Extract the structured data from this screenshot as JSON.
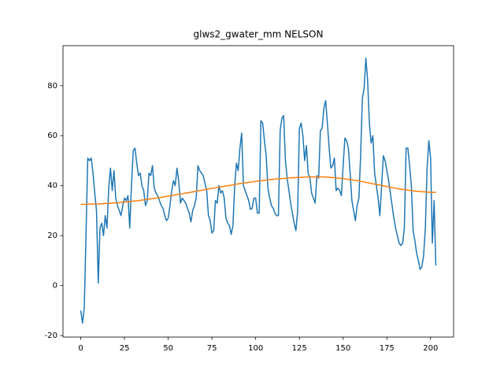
{
  "chart_data": {
    "type": "line",
    "title": "glws2_gwater_mm NELSON",
    "x": [
      0,
      1,
      2,
      3,
      4,
      5,
      6,
      7,
      8,
      9,
      10,
      11,
      12,
      13,
      14,
      15,
      16,
      17,
      18,
      19,
      20,
      21,
      22,
      23,
      24,
      25,
      26,
      27,
      28,
      29,
      30,
      31,
      32,
      33,
      34,
      35,
      36,
      37,
      38,
      39,
      40,
      41,
      42,
      43,
      44,
      45,
      46,
      47,
      48,
      49,
      50,
      51,
      52,
      53,
      54,
      55,
      56,
      57,
      58,
      59,
      60,
      61,
      62,
      63,
      64,
      65,
      66,
      67,
      68,
      69,
      70,
      71,
      72,
      73,
      74,
      75,
      76,
      77,
      78,
      79,
      80,
      81,
      82,
      83,
      84,
      85,
      86,
      87,
      88,
      89,
      90,
      91,
      92,
      93,
      94,
      95,
      96,
      97,
      98,
      99,
      100,
      101,
      102,
      103,
      104,
      105,
      106,
      107,
      108,
      109,
      110,
      111,
      112,
      113,
      114,
      115,
      116,
      117,
      118,
      119,
      120,
      121,
      122,
      123,
      124,
      125,
      126,
      127,
      128,
      129,
      130,
      131,
      132,
      133,
      134,
      135,
      136,
      137,
      138,
      139,
      140,
      141,
      142,
      143,
      144,
      145,
      146,
      147,
      148,
      149,
      150,
      151,
      152,
      153,
      154,
      155,
      156,
      157,
      158,
      159,
      160,
      161,
      162,
      163,
      164,
      165,
      166,
      167,
      168,
      169,
      170,
      171,
      172,
      173,
      174,
      175,
      176,
      177,
      178,
      179,
      180,
      181,
      182,
      183,
      184,
      185,
      186,
      187,
      188,
      189,
      190,
      191,
      192,
      193,
      194,
      195,
      196,
      197,
      198,
      199,
      200,
      201,
      202,
      203
    ],
    "series": [
      {
        "color": "#1f77b4",
        "values": [
          -10,
          -15,
          -9,
          20,
          51,
          50,
          51,
          45,
          37,
          30,
          1,
          23,
          25,
          20,
          28,
          23,
          39,
          47,
          38,
          46,
          35,
          32,
          30,
          28,
          32,
          35,
          34,
          36,
          23,
          40,
          54,
          55,
          49,
          44,
          45,
          40,
          38,
          32,
          34,
          45,
          44,
          48,
          39,
          37,
          36,
          34,
          32,
          31,
          28,
          26,
          27,
          32,
          38,
          42,
          40,
          47,
          42,
          33,
          35,
          34,
          33,
          31,
          29,
          25.5,
          30,
          32,
          35,
          48,
          46,
          45,
          44,
          41,
          38,
          28,
          26,
          21,
          22,
          34,
          33,
          40,
          37,
          38,
          35,
          27,
          25,
          24,
          20.5,
          24,
          40,
          49,
          46,
          55,
          61,
          40,
          38,
          36,
          34,
          30.5,
          31,
          35,
          35,
          29,
          29,
          66,
          65,
          58,
          52,
          39,
          35,
          32,
          31,
          29,
          28,
          28,
          62,
          67,
          68,
          50,
          43,
          38,
          33,
          29,
          25,
          22,
          30,
          63,
          65,
          60,
          50,
          56,
          45,
          43,
          37,
          35,
          33,
          44,
          43,
          62,
          63,
          71,
          74,
          65,
          55,
          47,
          48,
          51,
          38,
          39,
          38,
          36,
          48,
          59,
          58,
          55,
          45,
          34,
          30,
          26,
          32,
          35,
          52,
          75,
          79,
          91,
          82,
          65,
          57,
          60,
          45,
          40,
          35,
          28,
          40,
          52,
          50,
          46,
          42,
          37,
          32,
          27,
          23,
          20,
          17,
          16,
          17,
          23,
          55,
          55,
          48,
          40,
          22,
          18,
          13,
          10,
          6.5,
          7.5,
          12,
          23,
          47,
          58,
          51,
          17,
          34,
          8
        ]
      },
      {
        "color": "#ff7f0e",
        "values": [
          32.5,
          32.5,
          32.5,
          32.5,
          32.6,
          32.6,
          32.6,
          32.6,
          32.6,
          32.6,
          32.7,
          32.7,
          32.7,
          32.8,
          32.8,
          32.9,
          32.9,
          33.0,
          33.0,
          33.0,
          33.1,
          33.1,
          33.2,
          33.3,
          33.4,
          33.4,
          33.5,
          33.6,
          33.6,
          33.7,
          33.8,
          33.9,
          33.9,
          34.0,
          34.1,
          34.2,
          34.3,
          34.4,
          34.5,
          34.6,
          34.7,
          34.8,
          34.9,
          35.0,
          35.1,
          35.2,
          35.3,
          35.5,
          35.6,
          35.7,
          35.8,
          35.9,
          36.0,
          36.1,
          36.3,
          36.4,
          36.5,
          36.6,
          36.7,
          36.9,
          37.0,
          37.1,
          37.2,
          37.4,
          37.5,
          37.6,
          37.7,
          37.9,
          38.0,
          38.1,
          38.3,
          38.4,
          38.5,
          38.6,
          38.8,
          38.9,
          39.0,
          39.1,
          39.3,
          39.4,
          39.5,
          39.6,
          39.7,
          39.9,
          40.0,
          40.1,
          40.2,
          40.3,
          40.4,
          40.6,
          40.7,
          40.8,
          40.9,
          41.0,
          41.1,
          41.2,
          41.3,
          41.4,
          41.5,
          41.6,
          41.7,
          41.8,
          41.9,
          42.0,
          42.0,
          42.1,
          42.2,
          42.3,
          42.4,
          42.5,
          42.5,
          42.6,
          42.7,
          42.7,
          42.8,
          42.8,
          42.9,
          42.9,
          43.0,
          43.1,
          43.1,
          43.2,
          43.2,
          43.2,
          43.3,
          43.3,
          43.3,
          43.4,
          43.4,
          43.4,
          43.5,
          43.5,
          43.5,
          43.5,
          43.5,
          43.5,
          43.5,
          43.5,
          43.5,
          43.5,
          43.4,
          43.4,
          43.3,
          43.3,
          43.2,
          43.2,
          43.1,
          43.0,
          43.0,
          42.9,
          42.9,
          42.7,
          42.6,
          42.5,
          42.4,
          42.3,
          42.2,
          42.1,
          42.0,
          41.9,
          41.7,
          41.6,
          41.5,
          41.3,
          41.2,
          41.0,
          40.9,
          40.7,
          40.6,
          40.5,
          40.3,
          40.2,
          40.1,
          39.9,
          39.8,
          39.6,
          39.5,
          39.3,
          39.2,
          39.1,
          38.9,
          38.8,
          38.7,
          38.6,
          38.5,
          38.4,
          38.3,
          38.2,
          38.1,
          38.0,
          37.9,
          37.8,
          37.7,
          37.7,
          37.6,
          37.6,
          37.5,
          37.5,
          37.4,
          37.4,
          37.3,
          37.3,
          37.3,
          37.3
        ]
      }
    ],
    "xlim": [
      -10.15,
      213.15
    ],
    "xticks": [
      0,
      25,
      50,
      75,
      100,
      125,
      150,
      175,
      200
    ],
    "ylim": [
      -20.6,
      96.0
    ],
    "yticks": [
      -20,
      0,
      20,
      40,
      60,
      80
    ]
  }
}
